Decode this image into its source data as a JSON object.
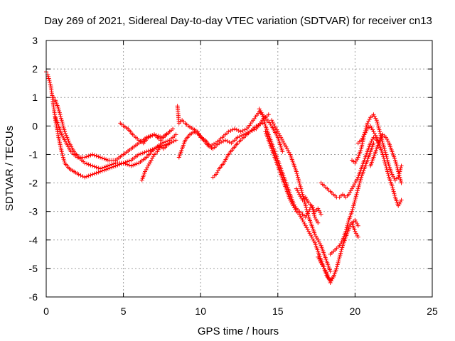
{
  "chart_data": {
    "type": "scatter",
    "title": "Day 269 of 2021, Sidereal Day-to-day VTEC variation (SDTVAR) for receiver cn13",
    "xlabel": "GPS time / hours",
    "ylabel": "SDTVAR / TECUs",
    "xlim": [
      0,
      25
    ],
    "ylim": [
      -6,
      3
    ],
    "xticks": [
      0,
      5,
      10,
      15,
      20,
      25
    ],
    "yticks": [
      -6,
      -5,
      -4,
      -3,
      -2,
      -1,
      0,
      1,
      2,
      3
    ],
    "xtick_labels": [
      "0",
      "5",
      "10",
      "15",
      "20",
      "25"
    ],
    "ytick_labels": [
      "-6",
      "-5",
      "-4",
      "-3",
      "-2",
      "-1",
      "0",
      "1",
      "2",
      "3"
    ],
    "grid": true,
    "marker": "+",
    "marker_color": "#ff0000",
    "series": [
      {
        "x": [
          0.0,
          0.1,
          0.2,
          0.3,
          0.4,
          0.5,
          0.6,
          0.8,
          1.0,
          1.2,
          1.5,
          1.8,
          2.1,
          2.5,
          3.0,
          3.5,
          4.0,
          4.5,
          5.0,
          5.5,
          6.0,
          6.5,
          7.0,
          7.5,
          8.0,
          8.4
        ],
        "y": [
          1.9,
          1.8,
          1.6,
          1.4,
          1.0,
          0.6,
          0.2,
          -0.4,
          -0.9,
          -1.3,
          -1.5,
          -1.6,
          -1.7,
          -1.8,
          -1.7,
          -1.6,
          -1.5,
          -1.4,
          -1.3,
          -1.2,
          -1.0,
          -0.9,
          -0.8,
          -0.7,
          -0.6,
          -0.5
        ]
      },
      {
        "x": [
          0.5,
          0.6,
          0.8,
          1.0,
          1.2,
          1.5,
          1.8,
          2.1,
          2.5,
          3.0,
          3.5,
          4.0,
          4.5,
          5.0,
          5.5,
          6.0,
          6.5,
          7.0,
          7.5,
          8.0,
          8.4
        ],
        "y": [
          1.0,
          0.9,
          0.6,
          0.2,
          -0.2,
          -0.6,
          -0.9,
          -1.1,
          -1.3,
          -1.4,
          -1.5,
          -1.4,
          -1.3,
          -1.3,
          -1.4,
          -1.3,
          -1.1,
          -0.8,
          -0.6,
          -0.5,
          -0.3
        ]
      },
      {
        "x": [
          0.6,
          0.8,
          1.0,
          1.3,
          1.6,
          2.0,
          2.5,
          3.0,
          3.5,
          4.0,
          4.5,
          5.0,
          5.5,
          6.0,
          6.5,
          7.0,
          7.5,
          8.0
        ],
        "y": [
          0.3,
          0.0,
          -0.3,
          -0.6,
          -0.9,
          -1.1,
          -1.1,
          -1.0,
          -1.1,
          -1.2,
          -1.2,
          -1.0,
          -0.8,
          -0.6,
          -0.4,
          -0.3,
          -0.4,
          -0.2
        ]
      },
      {
        "x": [
          4.8,
          5.0,
          5.3,
          5.6,
          6.0,
          6.3,
          6.6,
          7.0,
          7.4,
          7.8,
          8.2
        ],
        "y": [
          0.1,
          0.0,
          -0.1,
          -0.3,
          -0.5,
          -0.6,
          -0.4,
          -0.3,
          -0.5,
          -0.3,
          -0.1
        ]
      },
      {
        "x": [
          6.2,
          6.4,
          6.6,
          6.8,
          7.0,
          7.2,
          7.4,
          7.6,
          7.8,
          8.0
        ],
        "y": [
          -1.9,
          -1.6,
          -1.4,
          -1.2,
          -1.0,
          -0.9,
          -0.7,
          -0.8,
          -0.7,
          -0.6
        ]
      },
      {
        "x": [
          8.5,
          8.6,
          8.8,
          9.0,
          9.2,
          9.5,
          9.8,
          10.0,
          10.3,
          10.6,
          11.0,
          11.4,
          11.8,
          12.2,
          12.6,
          13.0,
          13.4,
          13.8,
          14.2,
          14.6,
          15.0,
          15.3
        ],
        "y": [
          0.7,
          0.1,
          0.2,
          0.1,
          0.0,
          -0.1,
          -0.2,
          -0.4,
          -0.5,
          -0.7,
          -0.6,
          -0.4,
          -0.2,
          -0.1,
          -0.2,
          -0.1,
          0.2,
          0.5,
          0.3,
          0.0,
          -0.4,
          -0.9
        ]
      },
      {
        "x": [
          8.6,
          8.8,
          9.0,
          9.3,
          9.6,
          9.9,
          10.2,
          10.5,
          10.8,
          11.2,
          11.6,
          12.0,
          12.4,
          12.8,
          13.2,
          13.6,
          14.0
        ],
        "y": [
          -1.1,
          -0.8,
          -0.5,
          -0.3,
          -0.2,
          -0.3,
          -0.5,
          -0.7,
          -0.8,
          -0.6,
          -0.5,
          -0.6,
          -0.4,
          -0.3,
          -0.2,
          0.0,
          0.1
        ]
      },
      {
        "x": [
          10.8,
          11.0,
          11.2,
          11.5,
          11.8,
          12.1,
          12.4,
          12.8,
          13.2,
          13.6,
          14.0,
          14.4
        ],
        "y": [
          -1.8,
          -1.7,
          -1.5,
          -1.3,
          -1.0,
          -0.8,
          -0.6,
          -0.4,
          -0.2,
          -0.1,
          0.2,
          0.4
        ]
      },
      {
        "x": [
          13.8,
          14.0,
          14.2,
          14.4,
          14.6,
          14.8,
          15.0,
          15.2,
          15.4,
          15.6,
          15.8,
          16.0,
          16.2,
          16.4,
          16.6,
          16.8,
          17.0,
          17.2,
          17.4,
          17.6
        ],
        "y": [
          0.6,
          0.4,
          0.0,
          -0.3,
          -0.6,
          -0.9,
          -1.2,
          -1.5,
          -1.8,
          -2.1,
          -2.4,
          -2.7,
          -2.9,
          -3.0,
          -3.1,
          -3.2,
          -3.0,
          -2.8,
          -3.2,
          -3.4
        ]
      },
      {
        "x": [
          14.2,
          14.4,
          14.6,
          14.8,
          15.0,
          15.2,
          15.4,
          15.6,
          15.8,
          16.0,
          16.2,
          16.4,
          16.6,
          16.8,
          17.0,
          17.2,
          17.4,
          17.6,
          17.8,
          18.0,
          18.2,
          18.4,
          18.6
        ],
        "y": [
          -0.2,
          -0.5,
          -0.8,
          -1.1,
          -1.4,
          -1.7,
          -2.0,
          -2.3,
          -2.6,
          -2.8,
          -3.0,
          -3.1,
          -3.3,
          -3.5,
          -3.7,
          -3.9,
          -4.1,
          -4.4,
          -4.7,
          -5.0,
          -5.3,
          -5.4,
          -5.3
        ]
      },
      {
        "x": [
          14.6,
          14.8,
          15.0,
          15.2,
          15.4,
          15.6,
          15.8,
          16.0,
          16.2,
          16.4,
          16.6,
          16.8,
          17.0,
          17.2,
          17.4,
          17.6,
          17.8,
          18.0,
          18.2,
          18.4
        ],
        "y": [
          0.2,
          0.0,
          -0.2,
          -0.4,
          -0.6,
          -0.8,
          -1.0,
          -1.3,
          -1.6,
          -2.0,
          -2.4,
          -2.8,
          -3.2,
          -3.5,
          -3.8,
          -4.0,
          -4.2,
          -4.5,
          -4.8,
          -5.1
        ]
      },
      {
        "x": [
          16.2,
          16.4,
          16.6,
          16.8,
          17.0,
          17.2,
          17.4,
          17.6,
          17.8
        ],
        "y": [
          -2.2,
          -2.4,
          -2.6,
          -2.5,
          -2.7,
          -2.8,
          -3.0,
          -2.9,
          -3.1
        ]
      },
      {
        "x": [
          17.6,
          17.8,
          18.0,
          18.2,
          18.4,
          18.6,
          18.8,
          19.0,
          19.2,
          19.4,
          19.6,
          19.8,
          20.0,
          20.2
        ],
        "y": [
          -4.6,
          -4.8,
          -5.0,
          -5.2,
          -5.5,
          -5.3,
          -5.0,
          -4.6,
          -4.2,
          -3.9,
          -3.6,
          -3.4,
          -3.3,
          -3.5
        ]
      },
      {
        "x": [
          18.4,
          18.6,
          18.8,
          19.0,
          19.2,
          19.4,
          19.6,
          19.8,
          20.0,
          20.2,
          20.4,
          20.6,
          20.8,
          21.0,
          21.2
        ],
        "y": [
          -4.5,
          -4.4,
          -4.3,
          -4.2,
          -4.0,
          -3.7,
          -3.3,
          -3.0,
          -2.6,
          -2.2,
          -1.8,
          -1.5,
          -1.2,
          -0.9,
          -0.6
        ]
      },
      {
        "x": [
          17.8,
          18.0,
          18.2,
          18.4,
          18.6,
          18.8,
          19.0,
          19.2,
          19.4,
          19.6,
          19.8,
          20.0,
          20.2,
          20.4,
          20.6,
          20.8,
          21.0,
          21.2,
          21.4
        ],
        "y": [
          -2.0,
          -2.1,
          -2.2,
          -2.3,
          -2.4,
          -2.5,
          -2.5,
          -2.4,
          -2.5,
          -2.4,
          -2.2,
          -2.0,
          -1.8,
          -1.5,
          -1.2,
          -0.9,
          -0.6,
          -0.4,
          -0.5
        ]
      },
      {
        "x": [
          19.8,
          20.0,
          20.2,
          20.4,
          20.6,
          20.8,
          21.0,
          21.2,
          21.4,
          21.6,
          21.8,
          22.0,
          22.2,
          22.4,
          22.6,
          22.8,
          23.0
        ],
        "y": [
          -1.2,
          -1.3,
          -1.1,
          -0.8,
          -0.3,
          0.1,
          0.3,
          0.4,
          0.2,
          -0.2,
          -0.6,
          -1.0,
          -1.4,
          -1.7,
          -1.9,
          -1.8,
          -1.4
        ]
      },
      {
        "x": [
          20.2,
          20.4,
          20.6,
          20.8,
          21.0,
          21.2,
          21.4,
          21.6,
          21.8,
          22.0,
          22.2,
          22.4,
          22.6,
          22.8,
          23.0
        ],
        "y": [
          -0.6,
          -0.5,
          -0.3,
          -0.1,
          0.0,
          -0.2,
          -0.4,
          -0.7,
          -1.0,
          -1.4,
          -1.8,
          -2.1,
          -2.5,
          -2.8,
          -2.6
        ]
      },
      {
        "x": [
          21.0,
          21.2,
          21.4,
          21.6,
          21.8,
          22.0,
          22.2,
          22.4,
          22.6,
          22.8,
          23.0
        ],
        "y": [
          -1.4,
          -1.1,
          -0.8,
          -0.5,
          -0.3,
          -0.4,
          -0.6,
          -0.9,
          -1.2,
          -1.6,
          -2.0
        ]
      },
      {
        "x": [
          19.8,
          20.0,
          20.2
        ],
        "y": [
          -3.4,
          -3.7,
          -3.9
        ]
      }
    ]
  }
}
